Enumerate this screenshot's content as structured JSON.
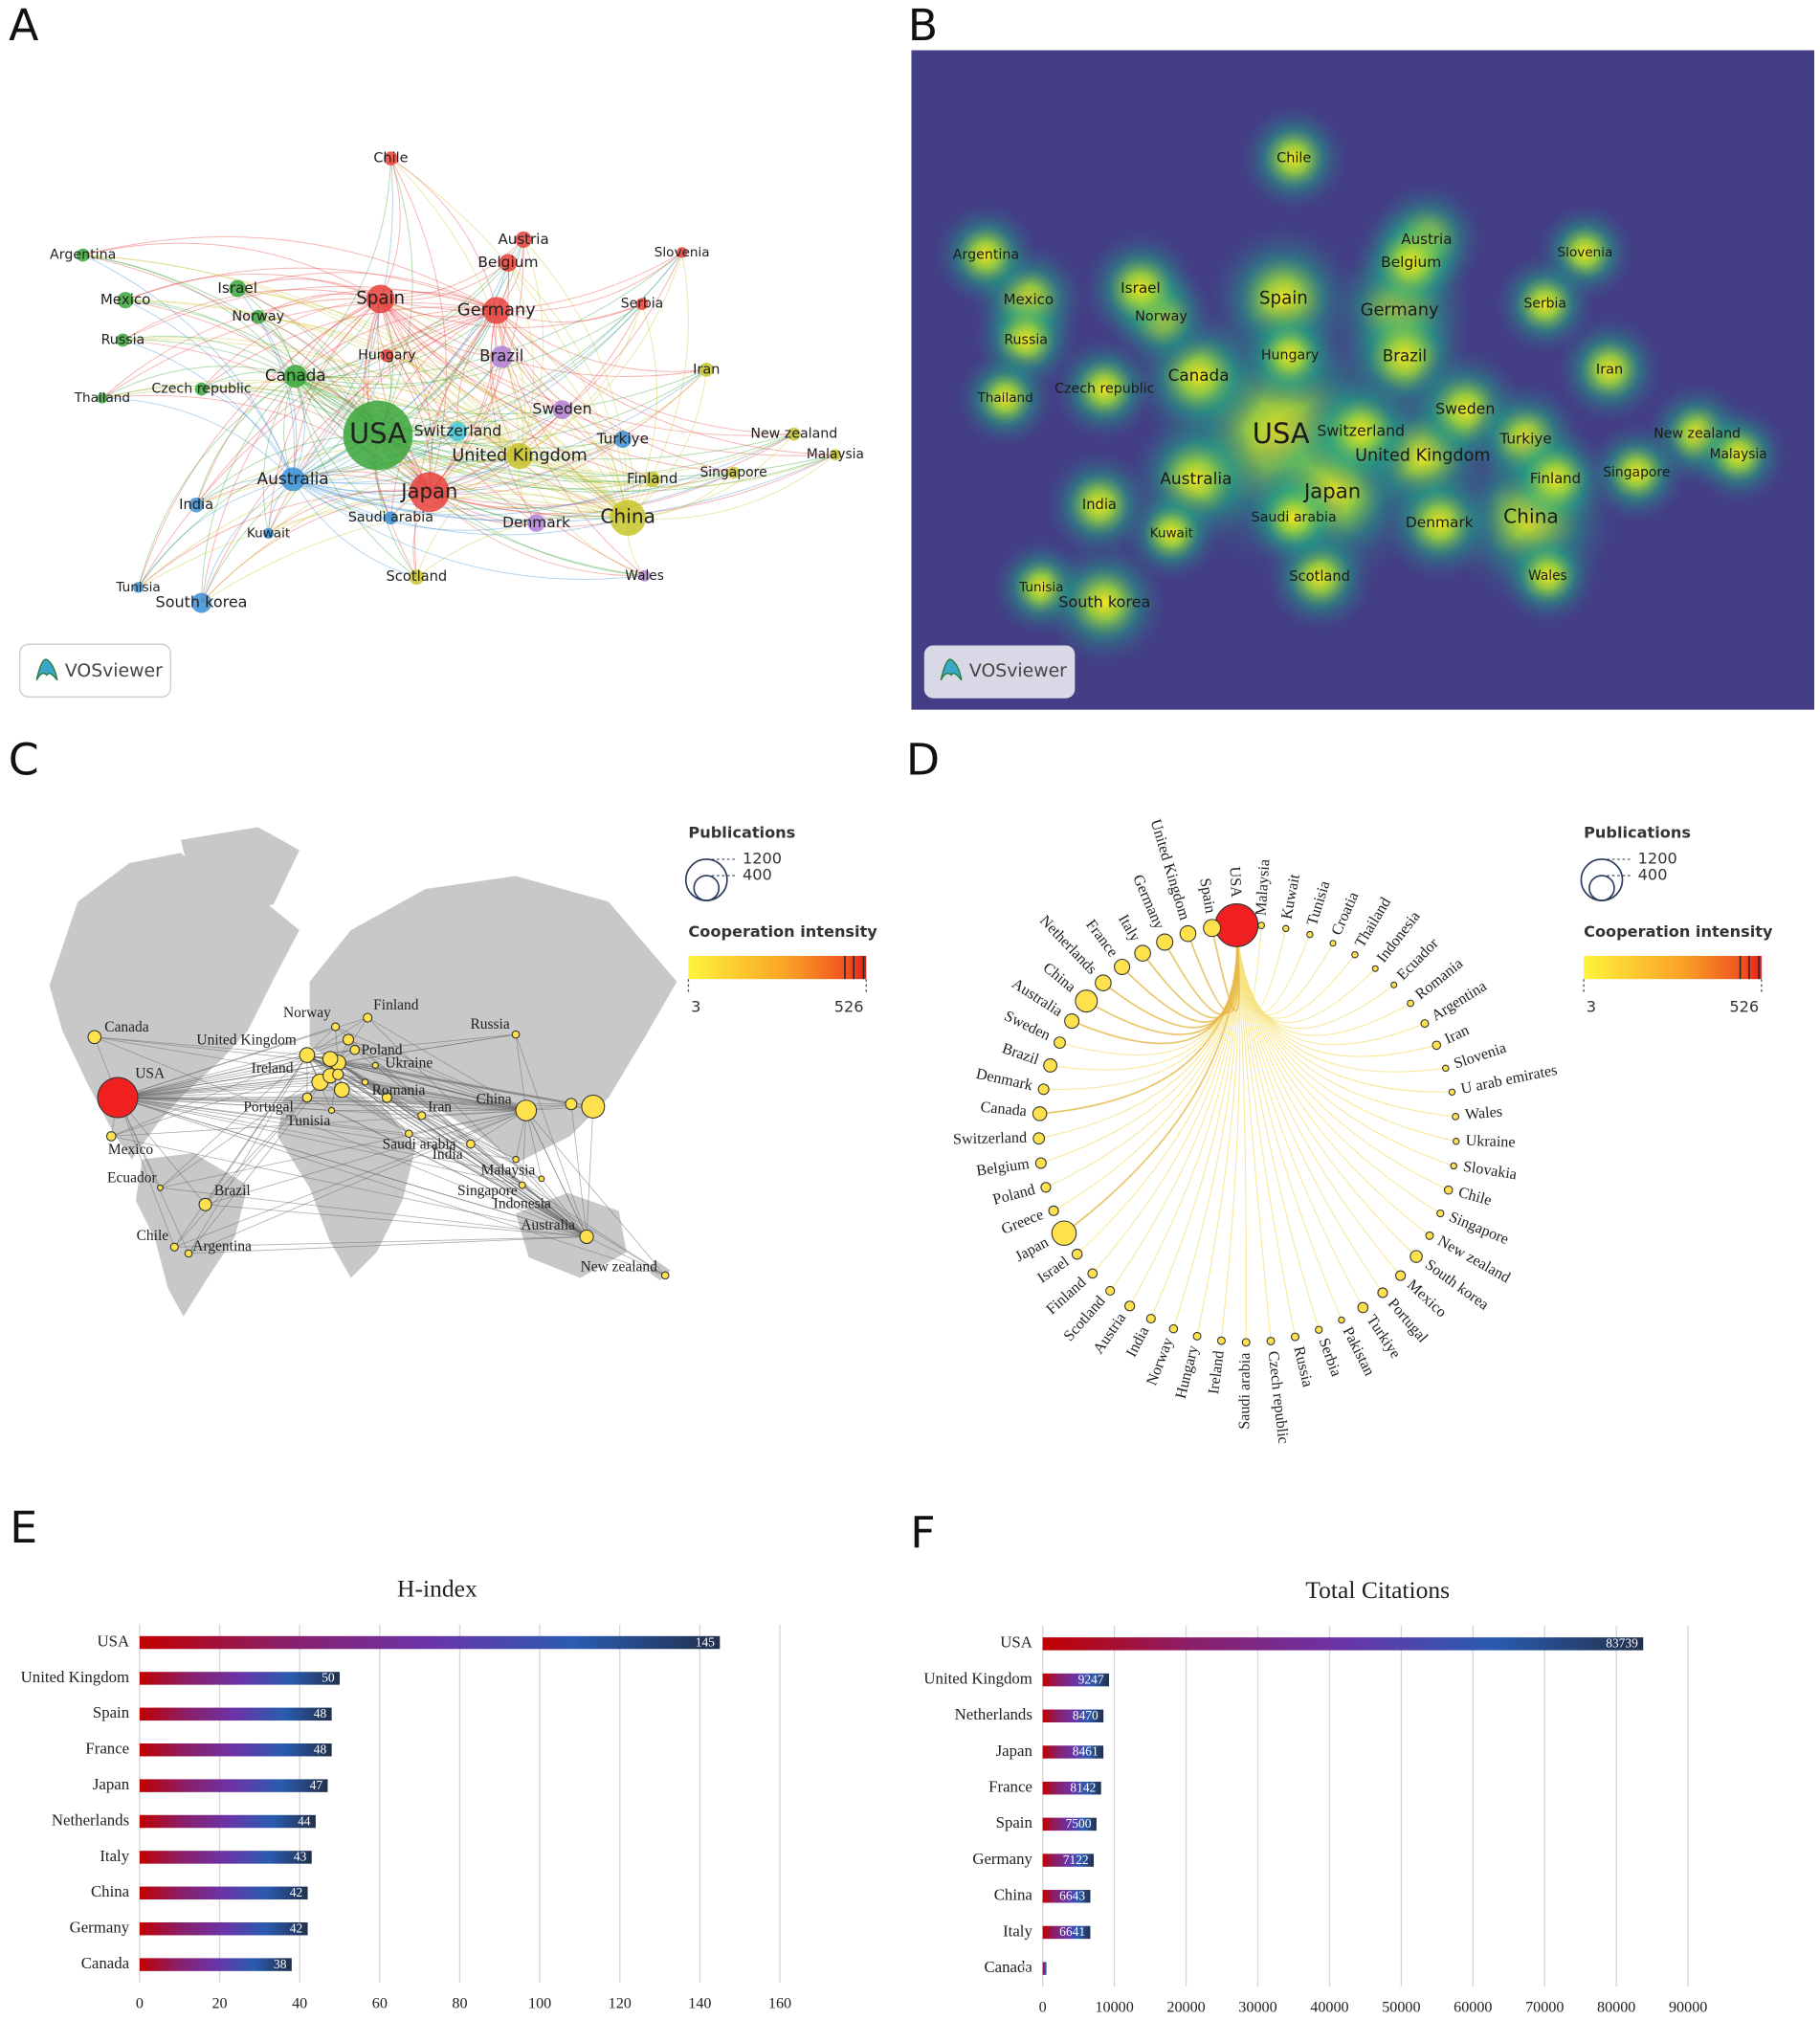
{
  "panel_labels": [
    "A",
    "B",
    "C",
    "D",
    "E",
    "F"
  ],
  "network": {
    "brand": "VOSviewer",
    "nodes": [
      "USA",
      "Spain",
      "Germany",
      "Japan",
      "China",
      "United Kingdom",
      "Australia",
      "Canada",
      "Brazil",
      "Switzerland",
      "Sweden",
      "Turkiye",
      "Finland",
      "Denmark",
      "Chile",
      "Austria",
      "Belgium",
      "Slovenia",
      "Serbia",
      "Iran",
      "New zealand",
      "Malaysia",
      "Singapore",
      "Wales",
      "Scotland",
      "Saudi arabia",
      "Kuwait",
      "India",
      "Tunisia",
      "South korea",
      "Hungary",
      "Norway",
      "Israel",
      "Mexico",
      "Russia",
      "Argentina",
      "Thailand",
      "Czech republic"
    ],
    "colors": [
      "#3aa63a",
      "#e8413c",
      "#e8413c",
      "#e8413c",
      "#c8c42a",
      "#c8c42a",
      "#3a8fd6",
      "#3aa63a",
      "#b07fd6",
      "#3ec8d8",
      "#b07fd6",
      "#3a8fd6",
      "#c8c42a",
      "#b07fd6",
      "#e8413c",
      "#e8413c",
      "#e8413c",
      "#e8413c",
      "#e8413c",
      "#c8c42a",
      "#c8c42a",
      "#c8c42a",
      "#c8c42a",
      "#b07fd6",
      "#c8c42a",
      "#3a8fd6",
      "#3a8fd6",
      "#3a8fd6",
      "#3a8fd6",
      "#3a8fd6",
      "#e8413c",
      "#3aa63a",
      "#3aa63a",
      "#3aa63a",
      "#3aa63a",
      "#3aa63a",
      "#3aa63a",
      "#3aa63a"
    ]
  },
  "map": {
    "labels": [
      "Canada",
      "United Kingdom",
      "USA",
      "Ireland",
      "Norway",
      "Finland",
      "Poland",
      "Ukraine",
      "Russia",
      "Romania",
      "Portugal",
      "Tunisia",
      "Iran",
      "Saudi arabia",
      "India",
      "China",
      "Malaysia",
      "Singapore",
      "Indonesia",
      "Australia",
      "Mexico",
      "Ecuador",
      "Brazil",
      "Chile",
      "Argentina",
      "New zealand"
    ]
  },
  "circle": {
    "countries": [
      "USA",
      "Malaysia",
      "Kuwait",
      "Tunisia",
      "Croatia",
      "Thailand",
      "Indonesia",
      "Ecuador",
      "Romania",
      "Argentina",
      "Iran",
      "Slovenia",
      "U arab emirates",
      "Wales",
      "Ukraine",
      "Slovakia",
      "Chile",
      "Singapore",
      "New zealand",
      "South korea",
      "Mexico",
      "Portugal",
      "Turkiye",
      "Pakistan",
      "Serbia",
      "Russia",
      "Czech republic",
      "Saudi arabia",
      "Ireland",
      "Hungary",
      "Norway",
      "India",
      "Austria",
      "Scotland",
      "Finland",
      "Israel",
      "Japan",
      "Greece",
      "Poland",
      "Belgium",
      "Switzerland",
      "Canada",
      "Denmark",
      "Brazil",
      "Sweden",
      "Australia",
      "China",
      "Netherlands",
      "France",
      "Italy",
      "Germany",
      "United Kingdom",
      "Spain"
    ],
    "publications": [
      1300,
      12,
      10,
      10,
      8,
      10,
      8,
      8,
      12,
      20,
      25,
      10,
      10,
      12,
      10,
      10,
      25,
      15,
      20,
      70,
      40,
      40,
      45,
      10,
      15,
      20,
      20,
      20,
      20,
      20,
      25,
      30,
      40,
      30,
      35,
      45,
      380,
      40,
      40,
      50,
      60,
      100,
      50,
      90,
      60,
      110,
      300,
      140,
      130,
      140,
      150,
      140,
      170
    ]
  },
  "legend": {
    "title": "Publications",
    "sizes": [
      1200,
      400
    ],
    "intensity_title": "Cooperation intensity",
    "intensity_range": [
      3,
      526
    ]
  },
  "chart_data": [
    {
      "type": "bar",
      "orientation": "horizontal",
      "title": "H-index",
      "categories": [
        "USA",
        "United Kingdom",
        "Spain",
        "France",
        "Japan",
        "Netherlands",
        "Italy",
        "China",
        "Germany",
        "Canada"
      ],
      "values": [
        145,
        50,
        48,
        48,
        47,
        44,
        43,
        42,
        42,
        38
      ],
      "colors": [
        "#c00000",
        "#8a1f6a",
        "#6a34a8",
        "#2a5cb0",
        "#22304c"
      ],
      "xlim": [
        0,
        160
      ],
      "xticks": [
        0,
        20,
        40,
        60,
        80,
        100,
        120,
        140,
        160
      ],
      "grid": true
    },
    {
      "type": "bar",
      "orientation": "horizontal",
      "title": "Total Citations",
      "categories": [
        "USA",
        "United Kingdom",
        "Netherlands",
        "Japan",
        "France",
        "Spain",
        "Germany",
        "China",
        "Italy",
        "Canada"
      ],
      "values": [
        83739,
        9247,
        8470,
        8461,
        8142,
        7500,
        7122,
        6643,
        6641,
        511
      ],
      "colors": [
        "#c00000",
        "#8a1f6a",
        "#6a34a8",
        "#2a5cb0",
        "#22304c"
      ],
      "xlim": [
        0,
        90000
      ],
      "xticks": [
        0,
        10000,
        20000,
        30000,
        40000,
        50000,
        60000,
        70000,
        80000,
        90000
      ],
      "grid": true
    }
  ]
}
